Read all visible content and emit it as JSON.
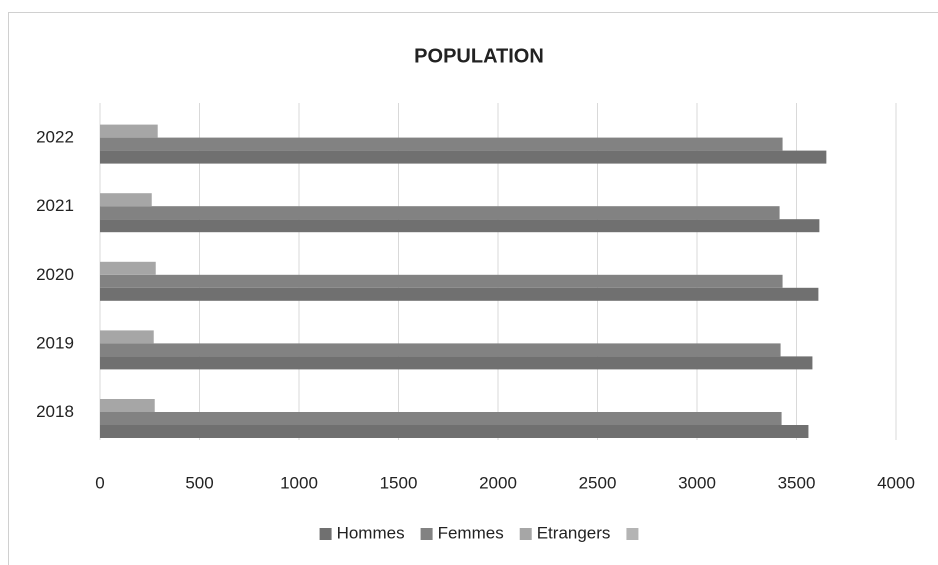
{
  "chart_data": {
    "type": "bar",
    "orientation": "horizontal",
    "title": "POPULATION",
    "categories": [
      "2018",
      "2019",
      "2020",
      "2021",
      "2022"
    ],
    "series": [
      {
        "name": "Hommes",
        "color": "#707070",
        "values": [
          3560,
          3580,
          3610,
          3615,
          3650
        ]
      },
      {
        "name": "Femmes",
        "color": "#828282",
        "values": [
          3425,
          3420,
          3430,
          3415,
          3430
        ]
      },
      {
        "name": "Etrangers",
        "color": "#a6a6a6",
        "values": [
          275,
          270,
          280,
          260,
          290
        ]
      },
      {
        "name": null,
        "color": "#b4b4b4",
        "values": [
          null,
          null,
          null,
          null,
          null
        ]
      }
    ],
    "xlim": [
      0,
      4000
    ],
    "xticks": [
      0,
      500,
      1000,
      1500,
      2000,
      2500,
      3000,
      3500,
      4000
    ],
    "grid": true,
    "legend": "bottom"
  }
}
